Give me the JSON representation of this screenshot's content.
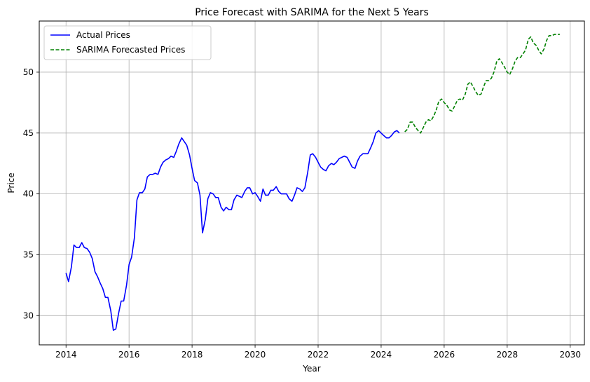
{
  "chart_data": {
    "type": "line",
    "title": "Price Forecast with SARIMA for the Next 5 Years",
    "xlabel": "Year",
    "ylabel": "Price",
    "xlim": [
      2013.15,
      2030.45
    ],
    "ylim": [
      27.6,
      54.2
    ],
    "xticks": [
      2014,
      2016,
      2018,
      2020,
      2022,
      2024,
      2026,
      2028,
      2030
    ],
    "yticks": [
      30,
      35,
      40,
      45,
      50
    ],
    "grid": true,
    "legend_position": "top-left",
    "series": [
      {
        "name": "Actual Prices",
        "color": "#0000ff",
        "style": "solid",
        "x": [
          2014.0,
          2014.08,
          2014.17,
          2014.25,
          2014.33,
          2014.42,
          2014.5,
          2014.58,
          2014.67,
          2014.75,
          2014.83,
          2014.92,
          2015.0,
          2015.08,
          2015.17,
          2015.25,
          2015.33,
          2015.42,
          2015.5,
          2015.58,
          2015.67,
          2015.75,
          2015.83,
          2015.92,
          2016.0,
          2016.08,
          2016.17,
          2016.25,
          2016.33,
          2016.42,
          2016.5,
          2016.58,
          2016.67,
          2016.75,
          2016.83,
          2016.92,
          2017.0,
          2017.08,
          2017.17,
          2017.25,
          2017.33,
          2017.42,
          2017.5,
          2017.58,
          2017.67,
          2017.75,
          2017.83,
          2017.92,
          2018.0,
          2018.08,
          2018.17,
          2018.25,
          2018.33,
          2018.42,
          2018.5,
          2018.58,
          2018.67,
          2018.75,
          2018.83,
          2018.92,
          2019.0,
          2019.08,
          2019.17,
          2019.25,
          2019.33,
          2019.42,
          2019.5,
          2019.58,
          2019.67,
          2019.75,
          2019.83,
          2019.92,
          2020.0,
          2020.08,
          2020.17,
          2020.25,
          2020.33,
          2020.42,
          2020.5,
          2020.58,
          2020.67,
          2020.75,
          2020.83,
          2020.92,
          2021.0,
          2021.08,
          2021.17,
          2021.25,
          2021.33,
          2021.42,
          2021.5,
          2021.58,
          2021.67,
          2021.75,
          2021.83,
          2021.92,
          2022.0,
          2022.08,
          2022.17,
          2022.25,
          2022.33,
          2022.42,
          2022.5,
          2022.58,
          2022.67,
          2022.75,
          2022.83,
          2022.92,
          2023.0,
          2023.08,
          2023.17,
          2023.25,
          2023.33,
          2023.42,
          2023.5,
          2023.58,
          2023.67,
          2023.75,
          2023.83,
          2023.92,
          2024.0,
          2024.08,
          2024.17,
          2024.25,
          2024.33,
          2024.42,
          2024.5,
          2024.58
        ],
        "y": [
          33.5,
          32.8,
          34.0,
          35.8,
          35.6,
          35.6,
          36.0,
          35.6,
          35.5,
          35.2,
          34.7,
          33.6,
          33.2,
          32.7,
          32.2,
          31.5,
          31.5,
          30.4,
          28.8,
          28.9,
          30.2,
          31.2,
          31.2,
          32.5,
          34.2,
          34.8,
          36.4,
          39.5,
          40.1,
          40.1,
          40.4,
          41.4,
          41.6,
          41.6,
          41.7,
          41.6,
          42.2,
          42.6,
          42.8,
          42.9,
          43.1,
          43.0,
          43.5,
          44.1,
          44.6,
          44.3,
          44.0,
          43.2,
          42.1,
          41.1,
          40.9,
          39.9,
          36.8,
          37.9,
          39.6,
          40.1,
          40.0,
          39.7,
          39.7,
          38.9,
          38.6,
          38.9,
          38.7,
          38.7,
          39.5,
          39.9,
          39.8,
          39.7,
          40.2,
          40.5,
          40.5,
          40.0,
          40.1,
          39.8,
          39.4,
          40.4,
          39.9,
          39.9,
          40.3,
          40.3,
          40.6,
          40.2,
          40.0,
          40.0,
          40.0,
          39.6,
          39.4,
          39.9,
          40.5,
          40.4,
          40.2,
          40.5,
          41.8,
          43.2,
          43.3,
          43.0,
          42.6,
          42.2,
          42.0,
          41.9,
          42.3,
          42.5,
          42.4,
          42.6,
          42.9,
          43.0,
          43.1,
          43.0,
          42.6,
          42.2,
          42.1,
          42.7,
          43.1,
          43.3,
          43.3,
          43.3,
          43.8,
          44.3,
          45.0,
          45.2,
          45.0,
          44.8,
          44.6,
          44.6,
          44.8,
          45.1,
          45.2,
          45.0
        ]
      },
      {
        "name": "SARIMA Forecasted Prices",
        "color": "#008000",
        "style": "dashed",
        "x": [
          2024.75,
          2024.83,
          2024.92,
          2025.0,
          2025.08,
          2025.17,
          2025.25,
          2025.33,
          2025.42,
          2025.5,
          2025.58,
          2025.67,
          2025.75,
          2025.83,
          2025.92,
          2026.0,
          2026.08,
          2026.17,
          2026.25,
          2026.33,
          2026.42,
          2026.5,
          2026.58,
          2026.67,
          2026.75,
          2026.83,
          2026.92,
          2027.0,
          2027.08,
          2027.17,
          2027.25,
          2027.33,
          2027.42,
          2027.5,
          2027.58,
          2027.67,
          2027.75,
          2027.83,
          2027.92,
          2028.0,
          2028.08,
          2028.17,
          2028.25,
          2028.33,
          2028.42,
          2028.5,
          2028.58,
          2028.67,
          2028.75,
          2028.83,
          2028.92,
          2029.0,
          2029.08,
          2029.17,
          2029.25,
          2029.33,
          2029.42,
          2029.5,
          2029.58,
          2029.67
        ],
        "y": [
          45.1,
          45.3,
          45.9,
          45.9,
          45.5,
          45.2,
          45.0,
          45.4,
          45.9,
          46.1,
          46.0,
          46.4,
          46.9,
          47.6,
          47.8,
          47.5,
          47.3,
          46.9,
          46.8,
          47.2,
          47.7,
          47.8,
          47.7,
          48.2,
          49.0,
          49.2,
          48.8,
          48.4,
          48.1,
          48.2,
          48.8,
          49.3,
          49.3,
          49.5,
          50.0,
          50.9,
          51.1,
          50.8,
          50.4,
          50.0,
          49.8,
          50.3,
          50.9,
          51.2,
          51.2,
          51.5,
          51.8,
          52.7,
          52.9,
          52.4,
          52.2,
          51.8,
          51.5,
          51.9,
          52.6,
          53.0,
          53.0,
          53.1,
          53.1,
          53.1
        ]
      }
    ]
  }
}
